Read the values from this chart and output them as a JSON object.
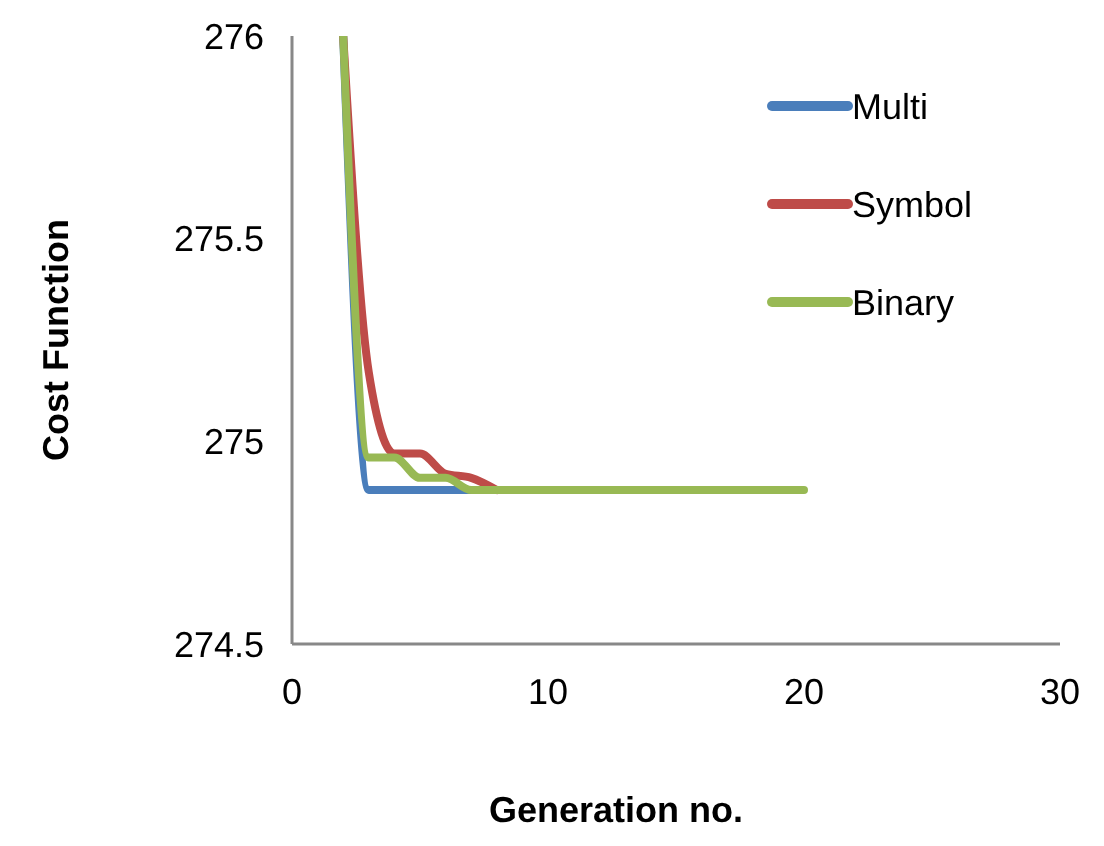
{
  "chart_data": {
    "type": "line",
    "xlabel": "Generation no.",
    "ylabel": "Cost Function",
    "x": [
      2,
      3,
      4,
      5,
      6,
      7,
      8,
      9,
      10,
      11,
      12,
      13,
      14,
      15,
      16,
      17,
      18,
      19,
      20
    ],
    "xlim": [
      0,
      30
    ],
    "xticks": [
      0,
      10,
      20,
      30
    ],
    "ylim": [
      274.5,
      276
    ],
    "yticks": [
      274.5,
      275,
      275.5,
      276
    ],
    "grid": false,
    "legend": "top right",
    "marker": "none",
    "line_style": "solid",
    "series": [
      {
        "name": "Multi",
        "color": "#4a7ebb",
        "values": [
          276,
          274.88,
          274.88,
          274.88,
          274.88,
          274.88,
          null,
          null,
          null,
          null,
          null,
          null,
          null,
          null,
          null,
          null,
          null,
          null,
          null
        ]
      },
      {
        "name": "Symbol",
        "color": "#be4b48",
        "values": [
          276,
          275.17,
          274.97,
          274.97,
          274.92,
          274.91,
          274.88,
          null,
          null,
          null,
          null,
          null,
          null,
          null,
          null,
          null,
          null,
          null,
          null
        ]
      },
      {
        "name": "Binary",
        "color": "#98b954",
        "values": [
          276,
          274.96,
          274.96,
          274.91,
          274.91,
          274.88,
          274.88,
          274.88,
          274.88,
          274.88,
          274.88,
          274.88,
          274.88,
          274.88,
          274.88,
          274.88,
          274.88,
          274.88,
          274.88
        ]
      }
    ]
  }
}
